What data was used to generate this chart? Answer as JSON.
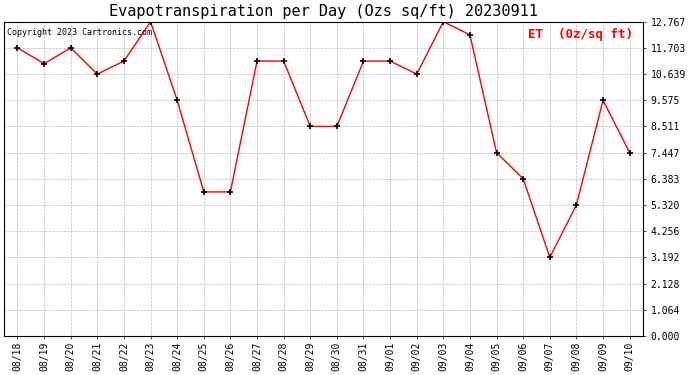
{
  "title": "Evapotranspiration per Day (Ozs sq/ft) 20230911",
  "copyright_text": "Copyright 2023 Cartronics.com",
  "legend_label": "ET  (0z/sq ft)",
  "dates": [
    "08/18",
    "08/19",
    "08/20",
    "08/21",
    "08/22",
    "08/23",
    "08/24",
    "08/25",
    "08/26",
    "08/27",
    "08/28",
    "08/29",
    "08/30",
    "08/31",
    "09/01",
    "09/02",
    "09/03",
    "09/04",
    "09/05",
    "09/06",
    "09/07",
    "09/08",
    "09/09",
    "09/10"
  ],
  "values": [
    11.703,
    11.064,
    11.703,
    10.639,
    11.168,
    12.767,
    9.575,
    5.852,
    5.852,
    11.168,
    11.168,
    8.511,
    8.511,
    11.168,
    11.168,
    10.639,
    12.767,
    12.232,
    7.447,
    6.383,
    3.192,
    5.32,
    9.575,
    7.447
  ],
  "yticks": [
    0.0,
    1.064,
    2.128,
    3.192,
    4.256,
    5.32,
    6.383,
    7.447,
    8.511,
    9.575,
    10.639,
    11.703,
    12.767
  ],
  "ylim": [
    0,
    12.767
  ],
  "line_color": "red",
  "marker_color": "black",
  "title_fontsize": 11,
  "copyright_fontsize": 6,
  "legend_fontsize": 9,
  "tick_fontsize": 7,
  "background_color": "#ffffff",
  "grid_color": "#bbbbbb",
  "figwidth": 6.9,
  "figheight": 3.75,
  "dpi": 100
}
